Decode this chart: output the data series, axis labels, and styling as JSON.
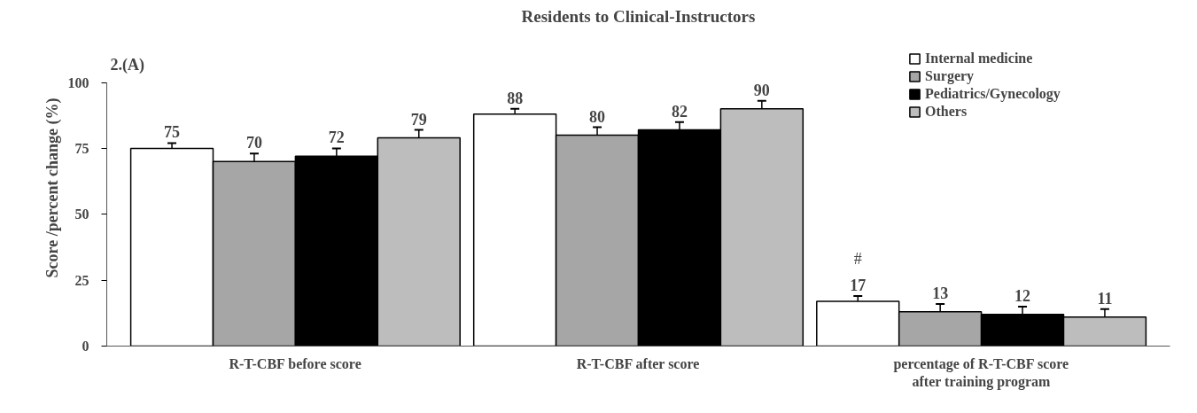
{
  "chart_data": {
    "type": "bar",
    "title": "Residents to Clinical-Instructors",
    "ylabel": "Score /percent change (%)",
    "categories": [
      "R-T-CBF before score",
      "R-T-CBF after score",
      "percentage of R-T-CBF score\nafter training program"
    ],
    "series": [
      {
        "name": "Internal medicine",
        "color": "#ffffff",
        "values": [
          75,
          88,
          17
        ],
        "errors": [
          2,
          2,
          2
        ]
      },
      {
        "name": "Surgery",
        "color": "#a6a6a6",
        "values": [
          70,
          80,
          13
        ],
        "errors": [
          3,
          3,
          3
        ]
      },
      {
        "name": "Pediatrics/Gynecology",
        "color": "#000000",
        "values": [
          72,
          82,
          12
        ],
        "errors": [
          3,
          3,
          3
        ]
      },
      {
        "name": "Others",
        "color": "#bdbdbd",
        "values": [
          79,
          90,
          11
        ],
        "errors": [
          3,
          3,
          3
        ]
      }
    ],
    "ylim": [
      0,
      100
    ],
    "yticks": [
      0,
      25,
      50,
      75,
      100
    ],
    "grid": false,
    "legend": "top right",
    "data_labels": true,
    "annotations": [
      "2.(A)",
      "#"
    ]
  }
}
